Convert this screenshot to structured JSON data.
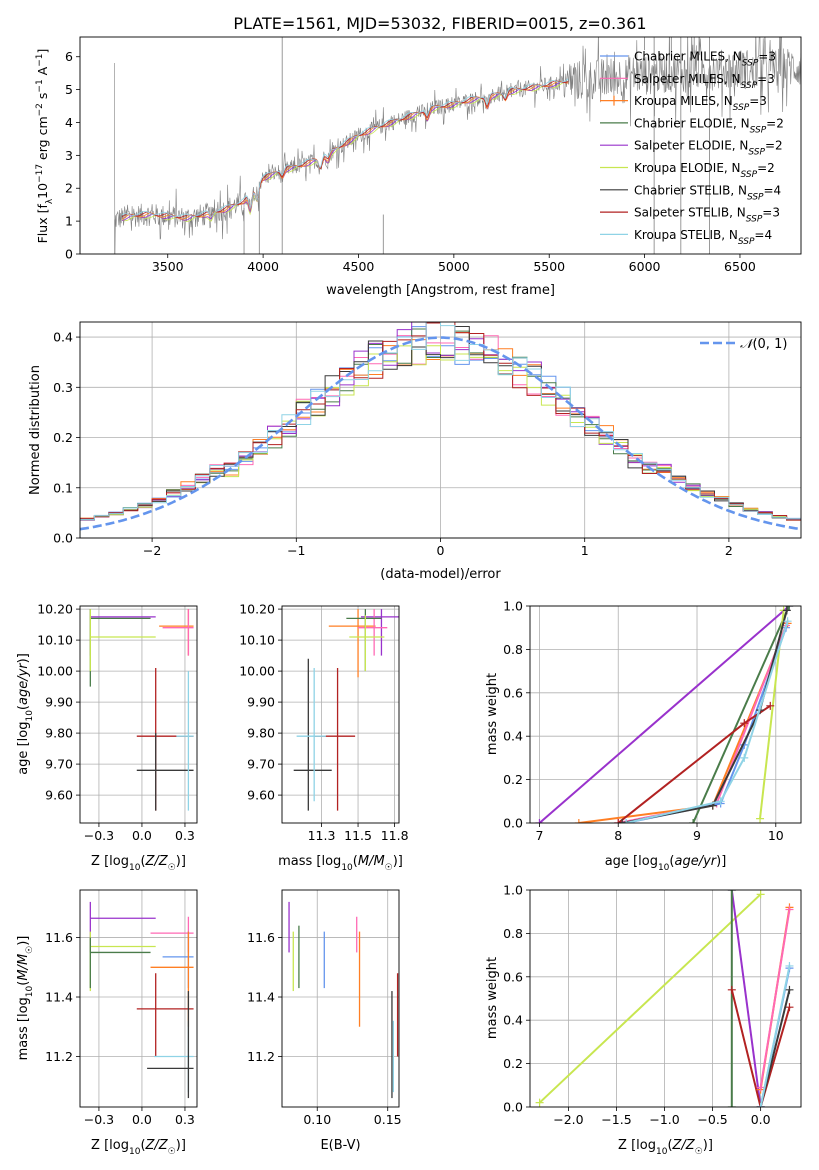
{
  "figure": {
    "title": "PLATE=1561, MJD=53032, FIBERID=0015, z=0.361"
  },
  "colors": {
    "chabrier_miles": "#6495ed",
    "salpeter_miles": "#ff69b4",
    "kroupa_miles": "#ff7f24",
    "chabrier_elodie": "#4a7c4a",
    "salpeter_elodie": "#9932cc",
    "kroupa_elodie": "#c8e650",
    "chabrier_stelib": "#3a3a3a",
    "salpeter_stelib": "#b22222",
    "kroupa_stelib": "#8fd3e6",
    "data": "#808080",
    "gauss": "#6495ed"
  },
  "chart_data": [
    {
      "id": "spectrum",
      "type": "line",
      "title": "PLATE=1561, MJD=53032, FIBERID=0015, z=0.361",
      "xlabel": "wavelength [Angstrom, rest frame]",
      "ylabel": "Flux [fλ 10⁻¹⁷ erg cm⁻² s⁻¹ A⁻¹]",
      "xlim": [
        3040,
        6820
      ],
      "ylim": [
        0,
        6.6
      ],
      "xticks": [
        3500,
        4000,
        4500,
        5000,
        5500,
        6000,
        6500
      ],
      "yticks": [
        0,
        1,
        2,
        3,
        4,
        5,
        6
      ],
      "grid": false,
      "legend_position": "top-right",
      "legend": [
        "Chabrier MILES, N_SSP=3",
        "Salpeter MILES, N_SSP=3",
        "Kroupa MILES, N_SSP=3",
        "Chabrier ELODIE, N_SSP=2",
        "Salpeter ELODIE, N_SSP=2",
        "Kroupa ELODIE, N_SSP=2",
        "Chabrier STELIB, N_SSP=4",
        "Salpeter STELIB, N_SSP=3",
        "Kroupa STELIB, N_SSP=4"
      ],
      "continuum": {
        "x": [
          3225,
          3300,
          3400,
          3500,
          3600,
          3700,
          3800,
          3900,
          4000,
          4100,
          4200,
          4300,
          4400,
          4500,
          4600,
          4700,
          4800,
          4900,
          5000,
          5100,
          5200,
          5300,
          5400,
          5500,
          5600,
          5700,
          5800,
          5900,
          6000,
          6100,
          6200,
          6300,
          6400,
          6500,
          6600,
          6700,
          6800
        ],
        "y": [
          1.05,
          1.15,
          1.2,
          1.15,
          1.1,
          1.2,
          1.35,
          1.6,
          2.3,
          2.55,
          2.7,
          2.9,
          3.25,
          3.6,
          3.85,
          4.05,
          4.25,
          4.45,
          4.55,
          4.7,
          4.8,
          4.95,
          5.05,
          5.15,
          5.25,
          5.3,
          5.35,
          5.45,
          5.45,
          5.5,
          5.55,
          5.6,
          5.6,
          5.62,
          5.65,
          5.65,
          5.7
        ]
      }
    },
    {
      "id": "residuals",
      "type": "histogram",
      "xlabel": "(data-model)/error",
      "ylabel": "Normed distribution",
      "xlim": [
        -2.5,
        2.5
      ],
      "ylim": [
        0,
        0.43
      ],
      "xticks": [
        -2,
        -1,
        0,
        1,
        2
      ],
      "yticks": [
        0.0,
        0.1,
        0.2,
        0.3,
        0.4
      ],
      "grid": true,
      "legend": [
        "𝒩(0, 1)"
      ],
      "legend_position": "top-right"
    },
    {
      "id": "age_vs_Z",
      "type": "scatter",
      "xlabel": "Z [log10(Z/Z☉)]",
      "ylabel": "age  [log10(age/yr)]",
      "xlim": [
        -0.36,
        0.32
      ],
      "ylim": [
        9.51,
        10.21
      ],
      "xticks": [
        -0.25,
        0.0,
        0.25
      ],
      "yticks": [
        9.6,
        9.7,
        9.8,
        9.9,
        10.0,
        10.1,
        10.2
      ],
      "grid": true,
      "points": [
        {
          "m": "salpeter_elodie",
          "x": -0.3,
          "y": 10.175,
          "xe": [
            -0.3,
            0.08
          ],
          "ye": [
            10.05,
            10.2
          ]
        },
        {
          "m": "chabrier_elodie",
          "x": -0.3,
          "y": 10.17,
          "xe": [
            -0.3,
            0.05
          ],
          "ye": [
            9.95,
            10.2
          ]
        },
        {
          "m": "kroupa_elodie",
          "x": -0.3,
          "y": 10.11,
          "xe": [
            -0.3,
            0.08
          ],
          "ye": [
            10.0,
            10.2
          ]
        },
        {
          "m": "kroupa_miles",
          "x": 0.27,
          "y": 10.145,
          "xe": [
            0.1,
            0.3
          ],
          "ye": [
            10.05,
            10.2
          ]
        },
        {
          "m": "salpeter_miles",
          "x": 0.27,
          "y": 10.14,
          "xe": [
            0.12,
            0.3
          ],
          "ye": [
            10.05,
            10.2
          ]
        },
        {
          "m": "salpeter_stelib",
          "x": 0.08,
          "y": 9.79,
          "xe": [
            -0.03,
            0.3
          ],
          "ye": [
            9.55,
            10.01
          ]
        },
        {
          "m": "chabrier_stelib",
          "x": 0.08,
          "y": 9.68,
          "xe": [
            -0.03,
            0.3
          ],
          "ye": [
            9.55,
            9.8
          ]
        },
        {
          "m": "kroupa_stelib",
          "x": 0.27,
          "y": 9.79,
          "xe": [
            0.2,
            0.3
          ],
          "ye": [
            9.55,
            10.0
          ]
        }
      ]
    },
    {
      "id": "age_vs_mass",
      "type": "scatter",
      "xlabel": "mass [log10(M/M☉)]",
      "ylabel": "",
      "xlim": [
        10.98,
        11.78
      ],
      "ylim": [
        9.51,
        10.21
      ],
      "xticks": [
        11.25,
        11.5,
        11.75
      ],
      "yticks": [
        9.6,
        9.7,
        9.8,
        9.9,
        10.0,
        10.1,
        10.2
      ],
      "grid": true,
      "points": [
        {
          "m": "salpeter_elodie",
          "x": 11.66,
          "y": 10.175,
          "xe": [
            11.52,
            11.78
          ],
          "ye": [
            10.05,
            10.2
          ]
        },
        {
          "m": "kroupa_miles",
          "x": 11.5,
          "y": 10.145,
          "xe": [
            11.3,
            11.62
          ],
          "ye": [
            9.98,
            10.2
          ]
        },
        {
          "m": "salpeter_miles",
          "x": 11.61,
          "y": 10.14,
          "xe": [
            11.5,
            11.7
          ],
          "ye": [
            10.05,
            10.2
          ]
        },
        {
          "m": "chabrier_elodie",
          "x": 11.55,
          "y": 10.17,
          "xe": [
            11.42,
            11.66
          ],
          "ye": [
            10.0,
            10.2
          ]
        },
        {
          "m": "kroupa_elodie",
          "x": 11.55,
          "y": 10.11,
          "xe": [
            11.44,
            11.68
          ],
          "ye": [
            10.0,
            10.18
          ]
        },
        {
          "m": "salpeter_stelib",
          "x": 11.36,
          "y": 9.79,
          "xe": [
            11.2,
            11.48
          ],
          "ye": [
            9.55,
            10.01
          ]
        },
        {
          "m": "chabrier_stelib",
          "x": 11.16,
          "y": 9.68,
          "xe": [
            11.06,
            11.32
          ],
          "ye": [
            9.55,
            10.04
          ]
        },
        {
          "m": "kroupa_stelib",
          "x": 11.2,
          "y": 9.79,
          "xe": [
            11.08,
            11.28
          ],
          "ye": [
            9.58,
            10.01
          ]
        }
      ]
    },
    {
      "id": "weight_vs_age",
      "type": "line",
      "xlabel": "age  [log10(age/yr)]",
      "ylabel": "mass weight",
      "xlim": [
        6.88,
        10.32
      ],
      "ylim": [
        0,
        1
      ],
      "xticks": [
        7,
        8,
        9,
        10
      ],
      "yticks": [
        0.0,
        0.2,
        0.4,
        0.6,
        0.8,
        1.0
      ],
      "grid": true,
      "series": [
        {
          "m": "salpeter_elodie",
          "x": [
            7.0,
            10.17
          ],
          "y": [
            0.0,
            1.0
          ]
        },
        {
          "m": "chabrier_elodie",
          "x": [
            8.95,
            10.17
          ],
          "y": [
            0.0,
            1.0
          ]
        },
        {
          "m": "kroupa_elodie",
          "x": [
            9.8,
            10.1
          ],
          "y": [
            0.02,
            0.98
          ]
        },
        {
          "m": "kroupa_miles",
          "x": [
            7.5,
            9.2,
            10.15
          ],
          "y": [
            0.0,
            0.08,
            0.92
          ]
        },
        {
          "m": "salpeter_miles",
          "x": [
            8.0,
            9.25,
            10.13
          ],
          "y": [
            0.0,
            0.09,
            0.91
          ]
        },
        {
          "m": "chabrier_miles",
          "x": [
            8.1,
            9.3,
            9.6,
            10.13
          ],
          "y": [
            0.0,
            0.09,
            0.36,
            0.9
          ]
        },
        {
          "m": "salpeter_stelib",
          "x": [
            8.0,
            9.6,
            9.93
          ],
          "y": [
            0.0,
            0.46,
            0.54
          ]
        },
        {
          "m": "chabrier_stelib",
          "x": [
            8.05,
            9.2,
            9.8,
            10.14
          ],
          "y": [
            0.0,
            0.08,
            0.52,
            0.98
          ]
        },
        {
          "m": "kroupa_stelib",
          "x": [
            8.1,
            9.3,
            9.6,
            10.15
          ],
          "y": [
            0.0,
            0.1,
            0.3,
            0.93
          ]
        }
      ]
    },
    {
      "id": "mass_vs_Z",
      "type": "scatter",
      "xlabel": "Z [log10(Z/Z☉)]",
      "ylabel": "mass [log10(M/M☉)]",
      "xlim": [
        -0.36,
        0.32
      ],
      "ylim": [
        11.03,
        11.76
      ],
      "xticks": [
        -0.25,
        0.0,
        0.25
      ],
      "yticks": [
        11.2,
        11.4,
        11.6
      ],
      "grid": true,
      "points": [
        {
          "m": "salpeter_elodie",
          "x": -0.3,
          "y": 11.665,
          "xe": [
            -0.3,
            0.08
          ],
          "ye": [
            11.55,
            11.72
          ]
        },
        {
          "m": "kroupa_elodie",
          "x": -0.3,
          "y": 11.57,
          "xe": [
            -0.3,
            0.08
          ],
          "ye": [
            11.42,
            11.62
          ]
        },
        {
          "m": "chabrier_elodie",
          "x": -0.3,
          "y": 11.55,
          "xe": [
            -0.3,
            0.05
          ],
          "ye": [
            11.43,
            11.6
          ]
        },
        {
          "m": "salpeter_miles",
          "x": 0.27,
          "y": 11.615,
          "xe": [
            0.05,
            0.3
          ],
          "ye": [
            11.55,
            11.67
          ]
        },
        {
          "m": "chabrier_miles",
          "x": 0.27,
          "y": 11.535,
          "xe": [
            0.12,
            0.3
          ],
          "ye": [
            11.43,
            11.62
          ]
        },
        {
          "m": "kroupa_miles",
          "x": 0.27,
          "y": 11.5,
          "xe": [
            0.05,
            0.3
          ],
          "ye": [
            11.3,
            11.62
          ]
        },
        {
          "m": "salpeter_stelib",
          "x": 0.08,
          "y": 11.36,
          "xe": [
            -0.03,
            0.3
          ],
          "ye": [
            11.2,
            11.48
          ]
        },
        {
          "m": "kroupa_stelib",
          "x": 0.27,
          "y": 11.2,
          "xe": [
            0.07,
            0.3
          ],
          "ye": [
            11.08,
            11.32
          ]
        },
        {
          "m": "chabrier_stelib",
          "x": 0.27,
          "y": 11.16,
          "xe": [
            0.03,
            0.3
          ],
          "ye": [
            11.06,
            11.42
          ]
        }
      ]
    },
    {
      "id": "mass_vs_ebv",
      "type": "scatter",
      "xlabel": "E(B-V)",
      "ylabel": "",
      "xlim": [
        0.075,
        0.158
      ],
      "ylim": [
        11.03,
        11.76
      ],
      "xticks": [
        0.1,
        0.15
      ],
      "yticks": [
        11.2,
        11.4,
        11.6
      ],
      "grid": true,
      "points": [
        {
          "m": "salpeter_elodie",
          "x": 0.08,
          "y": 11.665,
          "ye": [
            11.55,
            11.72
          ]
        },
        {
          "m": "kroupa_elodie",
          "x": 0.083,
          "y": 11.57,
          "ye": [
            11.42,
            11.62
          ]
        },
        {
          "m": "chabrier_elodie",
          "x": 0.087,
          "y": 11.55,
          "ye": [
            11.43,
            11.64
          ]
        },
        {
          "m": "chabrier_miles",
          "x": 0.105,
          "y": 11.535,
          "ye": [
            11.43,
            11.62
          ]
        },
        {
          "m": "salpeter_miles",
          "x": 0.128,
          "y": 11.615,
          "ye": [
            11.55,
            11.67
          ]
        },
        {
          "m": "kroupa_miles",
          "x": 0.13,
          "y": 11.5,
          "ye": [
            11.3,
            11.62
          ]
        },
        {
          "m": "chabrier_stelib",
          "x": 0.153,
          "y": 11.16,
          "ye": [
            11.06,
            11.42
          ]
        },
        {
          "m": "kroupa_stelib",
          "x": 0.154,
          "y": 11.2,
          "ye": [
            11.08,
            11.32
          ]
        },
        {
          "m": "salpeter_stelib",
          "x": 0.157,
          "y": 11.36,
          "ye": [
            11.2,
            11.48
          ]
        }
      ]
    },
    {
      "id": "weight_vs_Z",
      "type": "line",
      "xlabel": "Z [log10(Z/Z☉)]",
      "ylabel": "mass weight",
      "xlim": [
        -2.4,
        0.42
      ],
      "ylim": [
        0,
        1
      ],
      "xticks": [
        -2.0,
        -1.5,
        -1.0,
        -0.5,
        0.0
      ],
      "yticks": [
        0.0,
        0.2,
        0.4,
        0.6,
        0.8,
        1.0
      ],
      "grid": true,
      "series": [
        {
          "m": "kroupa_elodie",
          "x": [
            -2.3,
            0.0
          ],
          "y": [
            0.02,
            0.98
          ]
        },
        {
          "m": "salpeter_elodie",
          "x": [
            -0.3,
            0.0
          ],
          "y": [
            1.0,
            0.0
          ]
        },
        {
          "m": "chabrier_elodie",
          "x": [
            -0.3,
            -0.3
          ],
          "y": [
            1.0,
            0.0
          ]
        },
        {
          "m": "salpeter_stelib",
          "x": [
            -0.3,
            0.0,
            0.3
          ],
          "y": [
            0.54,
            0.0,
            0.46
          ]
        },
        {
          "m": "kroupa_miles",
          "x": [
            0.0,
            0.3
          ],
          "y": [
            0.08,
            0.92
          ]
        },
        {
          "m": "salpeter_miles",
          "x": [
            0.0,
            0.3
          ],
          "y": [
            0.09,
            0.91
          ]
        },
        {
          "m": "chabrier_miles",
          "x": [
            0.0,
            0.3
          ],
          "y": [
            0.0,
            0.64
          ]
        },
        {
          "m": "chabrier_stelib",
          "x": [
            0.0,
            0.3
          ],
          "y": [
            0.0,
            0.54
          ]
        },
        {
          "m": "kroupa_stelib",
          "x": [
            0.0,
            0.3
          ],
          "y": [
            0.0,
            0.65
          ]
        }
      ]
    }
  ]
}
